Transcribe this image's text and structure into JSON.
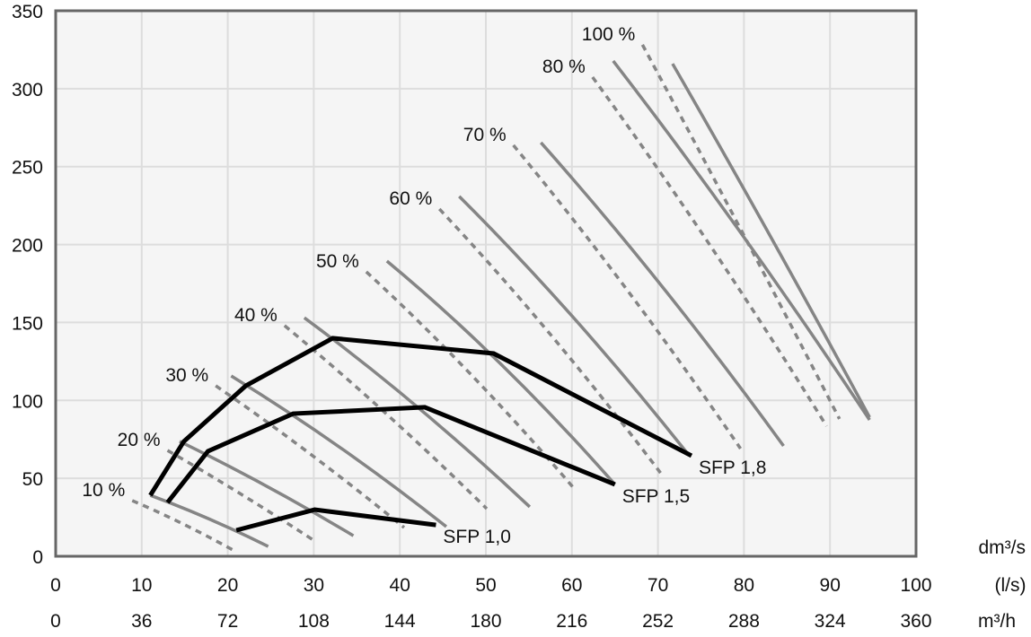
{
  "chart_data": {
    "type": "line",
    "title": "",
    "xlim": [
      0,
      100
    ],
    "ylim": [
      0,
      350
    ],
    "grid": true,
    "y_ticks": [
      0,
      50,
      100,
      150,
      200,
      250,
      300,
      350
    ],
    "x_ticks": [
      0,
      10,
      20,
      30,
      40,
      50,
      60,
      70,
      80,
      90,
      100
    ],
    "x_ticks_secondary": [
      0,
      36,
      72,
      108,
      144,
      180,
      216,
      252,
      288,
      324,
      360
    ],
    "x_units": [
      "dm³/s",
      "(l/s)",
      "m³/h"
    ],
    "colors": {
      "fan_curve": "#858585",
      "sfp_line": "#000000",
      "grid": "#dddddd",
      "background": "#f5f5f5",
      "border": "#666666"
    },
    "fan_curves": [
      {
        "name": "10 %",
        "dashed": [
          [
            8.9,
            35.7
          ],
          [
            14.7,
            21
          ],
          [
            20.6,
            4.0
          ]
        ],
        "solid": [
          [
            11.0,
            39.1
          ],
          [
            17.8,
            24
          ],
          [
            24.7,
            6.3
          ]
        ]
      },
      {
        "name": "20 %",
        "dashed": [
          [
            13.0,
            67.9
          ],
          [
            21.5,
            40
          ],
          [
            30.1,
            9.8
          ]
        ],
        "solid": [
          [
            14.4,
            73.7
          ],
          [
            24.5,
            45
          ],
          [
            34.6,
            13.2
          ]
        ]
      },
      {
        "name": "30 %",
        "dashed": [
          [
            18.6,
            109.4
          ],
          [
            29.5,
            66
          ],
          [
            40.5,
            18.4
          ]
        ],
        "solid": [
          [
            20.4,
            115.7
          ],
          [
            33,
            70
          ],
          [
            45.4,
            19.0
          ]
        ]
      },
      {
        "name": "40 %",
        "dashed": [
          [
            26.6,
            148
          ],
          [
            38.3,
            92
          ],
          [
            50.1,
            30.5
          ]
        ],
        "solid": [
          [
            28.9,
            153
          ],
          [
            42,
            96
          ],
          [
            55.1,
            31.7
          ]
        ]
      },
      {
        "name": "50 %",
        "dashed": [
          [
            36.1,
            182.5
          ],
          [
            48.2,
            117
          ],
          [
            60.3,
            43.2
          ]
        ],
        "solid": [
          [
            38.5,
            189.4
          ],
          [
            51.8,
            123
          ],
          [
            65.0,
            46.1
          ]
        ]
      },
      {
        "name": "60 %",
        "dashed": [
          [
            44.6,
            222.8
          ],
          [
            57.4,
            143
          ],
          [
            70.3,
            53.5
          ]
        ],
        "solid": [
          [
            46.9,
            230.9
          ],
          [
            60.2,
            153
          ],
          [
            73.4,
            66.2
          ]
        ]
      },
      {
        "name": "70 %",
        "dashed": [
          [
            53.2,
            263.7
          ],
          [
            66.4,
            171
          ],
          [
            79.6,
            69.1
          ]
        ],
        "solid": [
          [
            56.4,
            265.4
          ],
          [
            70.5,
            173
          ],
          [
            84.6,
            70.8
          ]
        ]
      },
      {
        "name": "80 %",
        "dashed": [
          [
            62.4,
            307.4
          ],
          [
            76,
            200
          ],
          [
            89.6,
            83.5
          ]
        ],
        "solid": [
          [
            64.8,
            317.8
          ],
          [
            79.7,
            207
          ],
          [
            94.6,
            87.5
          ]
        ]
      },
      {
        "name": "100 %",
        "dashed": [
          [
            68.2,
            328.2
          ],
          [
            79.6,
            210
          ],
          [
            91.1,
            88.1
          ]
        ],
        "solid": [
          [
            71.7,
            316
          ],
          [
            83.1,
            205
          ],
          [
            94.6,
            89.2
          ]
        ]
      }
    ],
    "sfp_lines": [
      {
        "name": "SFP 1,8",
        "points": [
          [
            11.0,
            39.1
          ],
          [
            14.9,
            73.7
          ],
          [
            22.1,
            109.4
          ],
          [
            32.2,
            139.9
          ],
          [
            50.9,
            130.1
          ],
          [
            73.9,
            64.5
          ]
        ]
      },
      {
        "name": "SFP 1,5",
        "points": [
          [
            13.0,
            34.5
          ],
          [
            17.7,
            67.4
          ],
          [
            27.6,
            91.5
          ],
          [
            42.9,
            95.6
          ],
          [
            65.0,
            46.1
          ]
        ]
      },
      {
        "name": "SFP 1,0",
        "points": [
          [
            21.0,
            16.7
          ],
          [
            30.1,
            29.9
          ],
          [
            44.2,
            20.1
          ]
        ]
      }
    ]
  }
}
